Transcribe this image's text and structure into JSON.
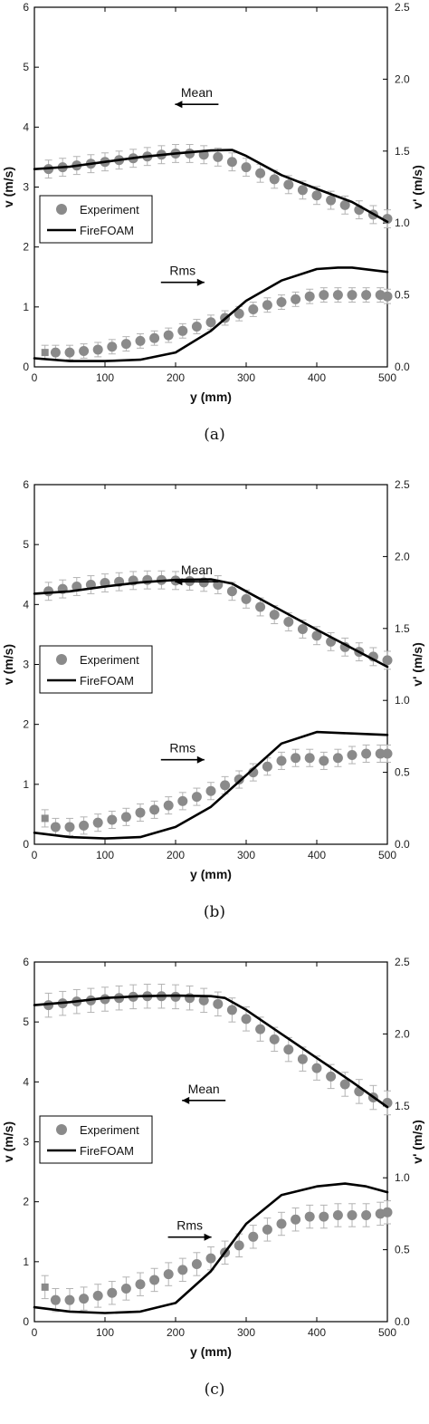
{
  "chart_data": [
    {
      "type": "scatter",
      "caption": "(a)",
      "xlabel": "y (mm)",
      "ylabel": "v (m/s)",
      "y2label": "v' (m/s)",
      "xlim": [
        0,
        500
      ],
      "ylim": [
        0,
        6
      ],
      "y2lim": [
        0,
        2.5
      ],
      "xticks": [
        0,
        100,
        200,
        300,
        400,
        500
      ],
      "yticks": [
        0,
        1,
        2,
        3,
        4,
        5,
        6
      ],
      "y2ticks": [
        0.0,
        0.5,
        1.0,
        1.5,
        2.0,
        2.5
      ],
      "legend": {
        "placement": "center-left",
        "entries": [
          "Experiment",
          "FireFOAM"
        ]
      },
      "annotations": [
        {
          "text": "Mean",
          "arrow": "left"
        },
        {
          "text": "Rms",
          "arrow": "right"
        }
      ],
      "series": [
        {
          "name": "Experiment",
          "kind": "mean-markers",
          "axis": "left",
          "x": [
            20,
            40,
            60,
            80,
            100,
            120,
            140,
            160,
            180,
            200,
            220,
            240,
            260,
            280,
            300,
            320,
            340,
            360,
            380,
            400,
            420,
            440,
            460,
            480,
            500
          ],
          "y": [
            3.3,
            3.33,
            3.36,
            3.39,
            3.42,
            3.45,
            3.48,
            3.51,
            3.54,
            3.56,
            3.56,
            3.54,
            3.5,
            3.42,
            3.33,
            3.23,
            3.13,
            3.04,
            2.95,
            2.86,
            2.78,
            2.7,
            2.62,
            2.54,
            2.47
          ],
          "err": 0.15
        },
        {
          "name": "Experiment",
          "kind": "rms-markers",
          "axis": "right",
          "x": [
            15,
            30,
            50,
            70,
            90,
            110,
            130,
            150,
            170,
            190,
            210,
            230,
            250,
            270,
            290,
            310,
            330,
            350,
            370,
            390,
            410,
            430,
            450,
            470,
            490,
            500
          ],
          "y": [
            0.1,
            0.1,
            0.1,
            0.11,
            0.12,
            0.14,
            0.16,
            0.18,
            0.2,
            0.22,
            0.25,
            0.28,
            0.31,
            0.34,
            0.37,
            0.4,
            0.43,
            0.45,
            0.47,
            0.49,
            0.5,
            0.5,
            0.5,
            0.5,
            0.5,
            0.49
          ],
          "err": 0.05
        },
        {
          "name": "FireFOAM",
          "kind": "mean-line",
          "axis": "left",
          "x": [
            0,
            50,
            100,
            150,
            200,
            250,
            280,
            300,
            350,
            400,
            450,
            500
          ],
          "y": [
            3.3,
            3.34,
            3.42,
            3.5,
            3.56,
            3.61,
            3.62,
            3.52,
            3.2,
            2.97,
            2.75,
            2.42
          ]
        },
        {
          "name": "FireFOAM",
          "kind": "rms-line",
          "axis": "right",
          "x": [
            0,
            50,
            100,
            150,
            200,
            250,
            300,
            350,
            400,
            430,
            450,
            500
          ],
          "y": [
            0.06,
            0.04,
            0.04,
            0.05,
            0.1,
            0.25,
            0.46,
            0.6,
            0.68,
            0.69,
            0.69,
            0.66
          ]
        }
      ]
    },
    {
      "type": "scatter",
      "caption": "(b)",
      "xlabel": "y (mm)",
      "ylabel": "v (m/s)",
      "y2label": "v' (m/s)",
      "xlim": [
        0,
        500
      ],
      "ylim": [
        0,
        6
      ],
      "y2lim": [
        0,
        2.5
      ],
      "xticks": [
        0,
        100,
        200,
        300,
        400,
        500
      ],
      "yticks": [
        0,
        1,
        2,
        3,
        4,
        5,
        6
      ],
      "y2ticks": [
        0.0,
        0.5,
        1.0,
        1.5,
        2.0,
        2.5
      ],
      "legend": {
        "placement": "center-left",
        "entries": [
          "Experiment",
          "FireFOAM"
        ]
      },
      "annotations": [
        {
          "text": "Mean",
          "arrow": "left"
        },
        {
          "text": "Rms",
          "arrow": "right"
        }
      ],
      "series": [
        {
          "name": "Experiment",
          "kind": "mean-markers",
          "axis": "left",
          "x": [
            20,
            40,
            60,
            80,
            100,
            120,
            140,
            160,
            180,
            200,
            220,
            240,
            260,
            280,
            300,
            320,
            340,
            360,
            380,
            400,
            420,
            440,
            460,
            480,
            500
          ],
          "y": [
            4.22,
            4.26,
            4.3,
            4.33,
            4.36,
            4.38,
            4.4,
            4.41,
            4.41,
            4.4,
            4.39,
            4.37,
            4.33,
            4.22,
            4.09,
            3.96,
            3.83,
            3.71,
            3.59,
            3.48,
            3.38,
            3.29,
            3.21,
            3.13,
            3.07
          ],
          "err": 0.15
        },
        {
          "name": "Experiment",
          "kind": "rms-markers",
          "axis": "right",
          "x": [
            15,
            30,
            50,
            70,
            90,
            110,
            130,
            150,
            170,
            190,
            210,
            230,
            250,
            270,
            290,
            310,
            330,
            350,
            370,
            390,
            410,
            430,
            450,
            470,
            490,
            500
          ],
          "y": [
            0.18,
            0.12,
            0.12,
            0.13,
            0.15,
            0.17,
            0.19,
            0.22,
            0.24,
            0.27,
            0.3,
            0.33,
            0.37,
            0.41,
            0.45,
            0.5,
            0.54,
            0.58,
            0.6,
            0.6,
            0.58,
            0.6,
            0.62,
            0.63,
            0.63,
            0.63
          ],
          "err": 0.06
        },
        {
          "name": "FireFOAM",
          "kind": "mean-line",
          "axis": "left",
          "x": [
            0,
            50,
            100,
            150,
            200,
            250,
            280,
            300,
            350,
            400,
            450,
            500
          ],
          "y": [
            4.18,
            4.22,
            4.3,
            4.37,
            4.41,
            4.42,
            4.35,
            4.22,
            3.9,
            3.58,
            3.27,
            2.96
          ]
        },
        {
          "name": "FireFOAM",
          "kind": "rms-line",
          "axis": "right",
          "x": [
            0,
            50,
            100,
            150,
            200,
            250,
            300,
            350,
            400,
            450,
            500
          ],
          "y": [
            0.08,
            0.05,
            0.04,
            0.05,
            0.12,
            0.26,
            0.48,
            0.7,
            0.78,
            0.77,
            0.76
          ]
        }
      ]
    },
    {
      "type": "scatter",
      "caption": "(c)",
      "xlabel": "y (mm)",
      "ylabel": "v (m/s)",
      "y2label": "v' (m/s)",
      "xlim": [
        0,
        500
      ],
      "ylim": [
        0,
        6
      ],
      "y2lim": [
        0,
        2.5
      ],
      "xticks": [
        0,
        100,
        200,
        300,
        400,
        500
      ],
      "yticks": [
        0,
        1,
        2,
        3,
        4,
        5,
        6
      ],
      "y2ticks": [
        0.0,
        0.5,
        1.0,
        1.5,
        2.0,
        2.5
      ],
      "legend": {
        "placement": "center-left",
        "entries": [
          "Experiment",
          "FireFOAM"
        ]
      },
      "annotations": [
        {
          "text": "Mean",
          "arrow": "left"
        },
        {
          "text": "Rms",
          "arrow": "right"
        }
      ],
      "series": [
        {
          "name": "Experiment",
          "kind": "mean-markers",
          "axis": "left",
          "x": [
            20,
            40,
            60,
            80,
            100,
            120,
            140,
            160,
            180,
            200,
            220,
            240,
            260,
            280,
            300,
            320,
            340,
            360,
            380,
            400,
            420,
            440,
            460,
            480,
            500
          ],
          "y": [
            5.28,
            5.31,
            5.34,
            5.36,
            5.38,
            5.4,
            5.42,
            5.43,
            5.43,
            5.42,
            5.4,
            5.36,
            5.3,
            5.2,
            5.05,
            4.88,
            4.71,
            4.54,
            4.38,
            4.23,
            4.09,
            3.96,
            3.84,
            3.74,
            3.65
          ],
          "err": 0.2
        },
        {
          "name": "Experiment",
          "kind": "rms-markers",
          "axis": "right",
          "x": [
            15,
            30,
            50,
            70,
            90,
            110,
            130,
            150,
            170,
            190,
            210,
            230,
            250,
            270,
            290,
            310,
            330,
            350,
            370,
            390,
            410,
            430,
            450,
            470,
            490,
            500
          ],
          "y": [
            0.24,
            0.15,
            0.15,
            0.16,
            0.18,
            0.2,
            0.23,
            0.26,
            0.29,
            0.33,
            0.36,
            0.4,
            0.44,
            0.48,
            0.53,
            0.59,
            0.64,
            0.68,
            0.71,
            0.73,
            0.73,
            0.74,
            0.74,
            0.74,
            0.75,
            0.76
          ],
          "err": 0.08
        },
        {
          "name": "FireFOAM",
          "kind": "mean-line",
          "axis": "left",
          "x": [
            0,
            50,
            100,
            150,
            200,
            250,
            270,
            300,
            350,
            400,
            450,
            500
          ],
          "y": [
            5.28,
            5.33,
            5.4,
            5.43,
            5.44,
            5.43,
            5.4,
            5.2,
            4.8,
            4.4,
            4.0,
            3.58
          ]
        },
        {
          "name": "FireFOAM",
          "kind": "rms-line",
          "axis": "right",
          "x": [
            0,
            50,
            100,
            150,
            200,
            250,
            300,
            350,
            400,
            440,
            470,
            500
          ],
          "y": [
            0.1,
            0.07,
            0.06,
            0.07,
            0.13,
            0.35,
            0.68,
            0.88,
            0.94,
            0.96,
            0.94,
            0.9
          ]
        }
      ]
    }
  ]
}
